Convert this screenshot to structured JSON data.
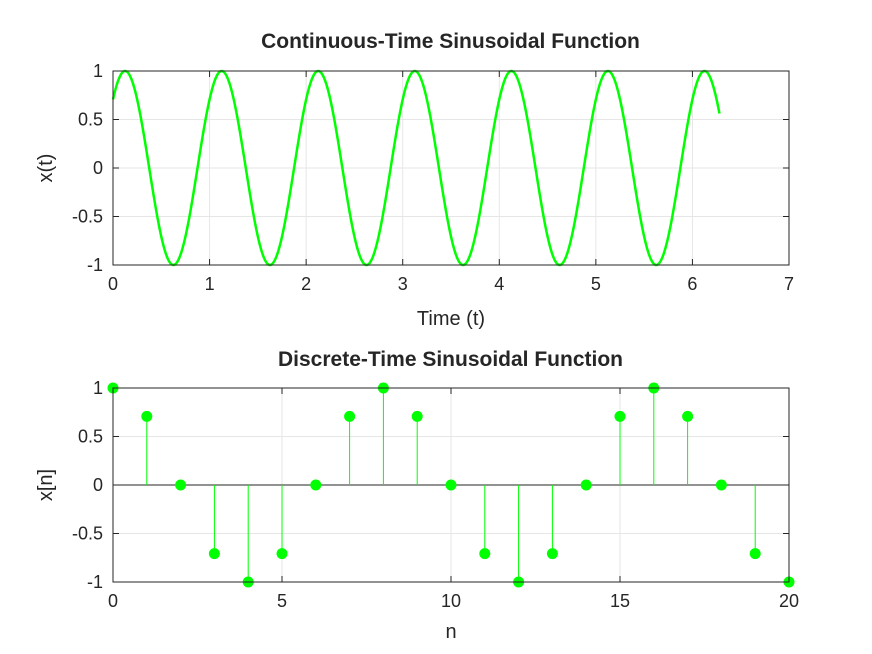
{
  "chart_data": [
    {
      "type": "line",
      "title": "Continuous-Time Sinusoidal Function",
      "xlabel": "Time (t)",
      "ylabel": "x(t)",
      "xlim": [
        0,
        7
      ],
      "ylim": [
        -1,
        1
      ],
      "xticks": [
        "0",
        "1",
        "2",
        "3",
        "4",
        "5",
        "6",
        "7"
      ],
      "yticks": [
        "1",
        "0.5",
        "0",
        "-0.5",
        "-1"
      ],
      "grid": true,
      "series": [
        {
          "function": "cos(2*pi*t - pi/4)",
          "t_range": [
            0,
            6.28
          ],
          "color": "#00ff00"
        }
      ]
    },
    {
      "type": "stem",
      "title": "Discrete-Time Sinusoidal Function",
      "xlabel": "n",
      "ylabel": "x[n]",
      "xlim": [
        0,
        20
      ],
      "ylim": [
        -1,
        1
      ],
      "xticks": [
        "0",
        "5",
        "10",
        "15",
        "20"
      ],
      "yticks": [
        "1",
        "0.5",
        "0",
        "-0.5",
        "-1"
      ],
      "grid": true,
      "series": [
        {
          "x": [
            0,
            1,
            2,
            3,
            4,
            5,
            6,
            7,
            8,
            9,
            10,
            11,
            12,
            13,
            14,
            15,
            16,
            17,
            18,
            19,
            20
          ],
          "values": [
            1,
            0.707,
            0,
            -0.707,
            -1,
            -0.707,
            0,
            0.707,
            1,
            0.707,
            0,
            -0.707,
            -1,
            -0.707,
            0,
            0.707,
            1,
            0.707,
            0,
            -0.707,
            -1
          ],
          "color": "#00ff00"
        }
      ]
    }
  ]
}
